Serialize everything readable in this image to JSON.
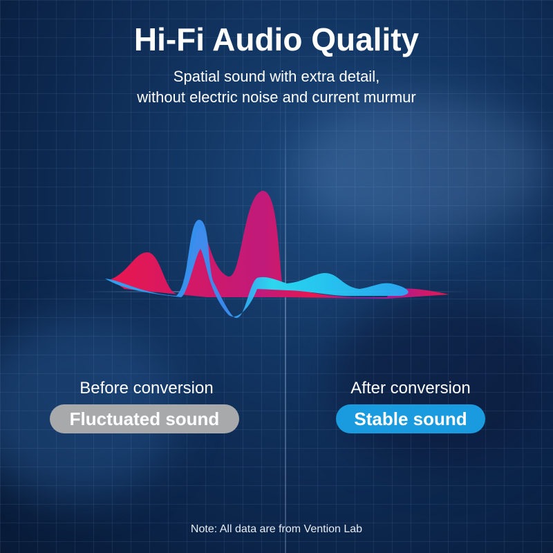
{
  "title": "Hi-Fi Audio Quality",
  "subtitle_lines": [
    "Spatial sound with extra detail,",
    "without electric noise and current murmur"
  ],
  "before": {
    "label": "Before conversion",
    "badge": "Fluctuated sound",
    "badge_color": "#a7a9ab"
  },
  "after": {
    "label": "After conversion",
    "badge": "Stable sound",
    "badge_color": "#1a9be0"
  },
  "note": "Note: All data are from Vention Lab",
  "colors": {
    "background": "#0b2449",
    "wave_red": "#e8174f",
    "wave_purple": "#8e1eb0",
    "wave_blue": "#2aa8f5",
    "wave_cyan": "#25e0f5"
  }
}
